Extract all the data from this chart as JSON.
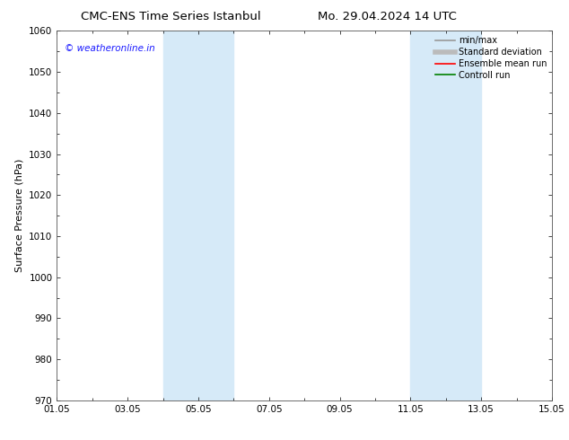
{
  "title_left": "CMC-ENS Time Series Istanbul",
  "title_right": "Mo. 29.04.2024 14 UTC",
  "ylabel": "Surface Pressure (hPa)",
  "ylim": [
    970,
    1060
  ],
  "yticks": [
    970,
    980,
    990,
    1000,
    1010,
    1020,
    1030,
    1040,
    1050,
    1060
  ],
  "xlim": [
    0,
    14
  ],
  "xtick_positions": [
    0,
    2,
    4,
    6,
    8,
    10,
    12,
    14
  ],
  "xtick_labels": [
    "01.05",
    "03.05",
    "05.05",
    "07.05",
    "09.05",
    "11.05",
    "13.05",
    "15.05"
  ],
  "shaded_regions": [
    {
      "xmin": 3.0,
      "xmax": 5.0
    },
    {
      "xmin": 10.0,
      "xmax": 12.0
    }
  ],
  "shade_color": "#d6eaf8",
  "shade_alpha": 1.0,
  "watermark_text": "© weatheronline.in",
  "watermark_color": "#1a1aff",
  "watermark_fontsize": 7.5,
  "legend_entries": [
    {
      "label": "min/max",
      "color": "#999999",
      "lw": 1.2
    },
    {
      "label": "Standard deviation",
      "color": "#bbbbbb",
      "lw": 4.0
    },
    {
      "label": "Ensemble mean run",
      "color": "#ff0000",
      "lw": 1.2
    },
    {
      "label": "Controll run",
      "color": "#008000",
      "lw": 1.2
    }
  ],
  "background_color": "#ffffff",
  "title_fontsize": 9.5,
  "axis_label_fontsize": 8,
  "tick_fontsize": 7.5,
  "legend_fontsize": 7
}
